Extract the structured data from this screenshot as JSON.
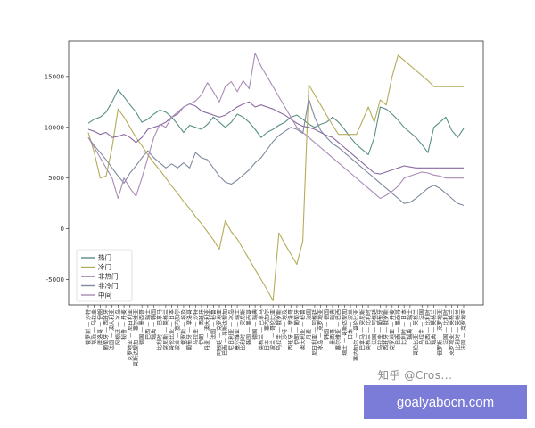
{
  "chart_data": {
    "type": "line",
    "title": "",
    "xlabel": "",
    "ylabel": "",
    "ylim": [
      -7500,
      18500
    ],
    "yticks": [
      -5000,
      0,
      5000,
      10000,
      15000
    ],
    "grid": false,
    "legend_position": "bottom-left",
    "categories": [
      "俄罗斯 — 沙特",
      "埃及 — 乌拉圭",
      "摩洛哥 — 伊朗",
      "葡萄牙 — 西班牙",
      "法国 — 澳大利亚",
      "阿根廷 — 冰岛",
      "秘鲁 — 丹麦",
      "克罗地亚 — 尼日利亚",
      "哥斯达黎加 — 塞尔维亚",
      "德国 — 墨西哥",
      "巴西 — 瑞士",
      "瑞典 — 韩国",
      "比利时 — 巴拿马",
      "突尼斯 — 英格兰",
      "哥伦比亚 — 日本",
      "波兰 — 塞内加尔",
      "俄罗斯 — 埃及",
      "葡萄牙 — 摩洛哥",
      "乌拉圭 — 沙特",
      "伊朗 — 西班牙",
      "丹麦 — 澳大利亚",
      "法国 — 秘鲁",
      "阿根廷 — 克罗地亚",
      "巴西 — 哥斯达黎加",
      "尼日利亚 — 冰岛",
      "塞尔维亚 — 瑞士",
      "比利时 — 突尼斯",
      "韩国 — 墨西哥",
      "德国 — 瑞典",
      "英格兰 — 巴拿马",
      "日本 — 塞内加尔",
      "波兰 — 哥伦比亚",
      "乌拉圭 — 俄罗斯",
      "沙特 — 埃及",
      "西班牙 — 摩洛哥",
      "伊朗 — 葡萄牙",
      "澳大利亚 — 秘鲁",
      "丹麦 — 法国",
      "尼日利亚 — 阿根廷",
      "冰岛 — 克罗地亚",
      "韩国 — 德国",
      "墨西哥 — 瑞典",
      "塞尔维亚 — 巴西",
      "瑞士 — 哥斯达黎加",
      "日本 — 波兰",
      "塞内加尔 — 哥伦比亚",
      "巴拿马 — 突尼斯",
      "英格兰 — 比利时",
      "法国 — 阿根廷",
      "乌拉圭 — 葡萄牙",
      "西班牙 — 俄罗斯",
      "克罗地亚 — 丹麦",
      "巴西 — 墨西哥",
      "比利时 — 日本",
      "瑞典 — 瑞士",
      "哥伦比亚 — 英格兰",
      "乌拉圭 — 法国",
      "巴西 — 比利时",
      "瑞典 — 英格兰",
      "俄罗斯 — 克罗地亚",
      "法国 — 比利时",
      "克罗地亚 — 英格兰",
      "比利时 — 英格兰",
      "法国 — 克罗地亚"
    ],
    "series": [
      {
        "name": "热门",
        "color": "#5a8f86",
        "values": [
          10400,
          10800,
          11000,
          11500,
          12500,
          13700,
          13000,
          12200,
          11500,
          10500,
          10800,
          11300,
          11700,
          11500,
          11000,
          10300,
          9500,
          10200,
          10000,
          9800,
          10300,
          11000,
          10500,
          10000,
          10500,
          11300,
          11000,
          10500,
          9800,
          9000,
          9500,
          9800,
          10200,
          10500,
          11000,
          11200,
          10800,
          10300,
          10000,
          10300,
          10500,
          11000,
          10500,
          9800,
          9000,
          8300,
          7800,
          7300,
          9000,
          12000,
          11800,
          11300,
          10700,
          10000,
          9500,
          9000,
          8300,
          7500,
          10000,
          10500,
          11000,
          9700,
          9000,
          9900
        ]
      },
      {
        "name": "冷门",
        "color": "#b5ac5a",
        "values": [
          9500,
          7500,
          5000,
          5200,
          8000,
          11800,
          11000,
          10000,
          9000,
          8200,
          7300,
          6500,
          5800,
          5000,
          4200,
          3500,
          2700,
          2000,
          1200,
          500,
          -300,
          -1100,
          -2000,
          800,
          -300,
          -1000,
          -2000,
          -3000,
          -4000,
          -5000,
          -6000,
          -7100,
          -400,
          -1500,
          -2500,
          -3500,
          -1200,
          14200,
          13200,
          12200,
          11200,
          10200,
          9300,
          9300,
          9300,
          9300,
          10600,
          12000,
          10500,
          12700,
          12200,
          15000,
          17100,
          16600,
          16100,
          15600,
          15100,
          14600,
          14000,
          14000,
          14000,
          14000,
          14000,
          14000
        ]
      },
      {
        "name": "非热门",
        "color": "#8a6aa0",
        "values": [
          9800,
          9600,
          9300,
          9500,
          9000,
          9100,
          9300,
          9000,
          8500,
          9000,
          9800,
          10000,
          10200,
          10500,
          11000,
          11300,
          12000,
          12300,
          12100,
          11600,
          11400,
          11200,
          11000,
          11200,
          11600,
          12000,
          12300,
          12500,
          12000,
          12200,
          12000,
          11800,
          11500,
          11200,
          10800,
          10400,
          10100,
          10000,
          9800,
          9500,
          9200,
          9000,
          8500,
          8000,
          7500,
          7000,
          6500,
          6000,
          5500,
          5400,
          5600,
          5800,
          6000,
          6200,
          6100,
          6000,
          6000,
          6000,
          6000,
          6000,
          6000,
          6000,
          6000,
          6000
        ]
      },
      {
        "name": "非冷门",
        "color": "#7f8aa0",
        "values": [
          9000,
          8200,
          7500,
          6800,
          6000,
          5200,
          4500,
          5500,
          6200,
          7000,
          7700,
          7000,
          6500,
          6000,
          6400,
          6000,
          6500,
          6000,
          7500,
          7000,
          6800,
          6000,
          5200,
          4600,
          4400,
          4800,
          5300,
          5800,
          6500,
          7000,
          7800,
          8600,
          9200,
          9600,
          10000,
          9800,
          9400,
          12800,
          11000,
          9700,
          9000,
          8400,
          8000,
          7500,
          7000,
          6500,
          6000,
          5500,
          5000,
          4500,
          4000,
          3500,
          3000,
          2500,
          2600,
          3000,
          3500,
          4000,
          4300,
          4000,
          3500,
          3000,
          2500,
          2300
        ]
      },
      {
        "name": "中间",
        "color": "#a98bb5",
        "values": [
          9000,
          8000,
          7000,
          6000,
          5000,
          3000,
          5000,
          4000,
          3200,
          5000,
          7000,
          9000,
          10300,
          10000,
          11000,
          11500,
          12000,
          12300,
          12600,
          13200,
          14400,
          13500,
          12500,
          14000,
          14500,
          13500,
          14600,
          13800,
          17300,
          16000,
          15000,
          14000,
          13000,
          12000,
          11000,
          10000,
          9500,
          9000,
          8500,
          8000,
          7500,
          7000,
          6500,
          6000,
          5500,
          5000,
          4500,
          4000,
          3500,
          3000,
          3300,
          3700,
          4200,
          5000,
          5200,
          5400,
          5600,
          5500,
          5300,
          5200,
          5000,
          5000,
          5000,
          5000
        ]
      }
    ]
  },
  "watermark": "知乎 @Cros...",
  "banner": "goalyabocn.com"
}
